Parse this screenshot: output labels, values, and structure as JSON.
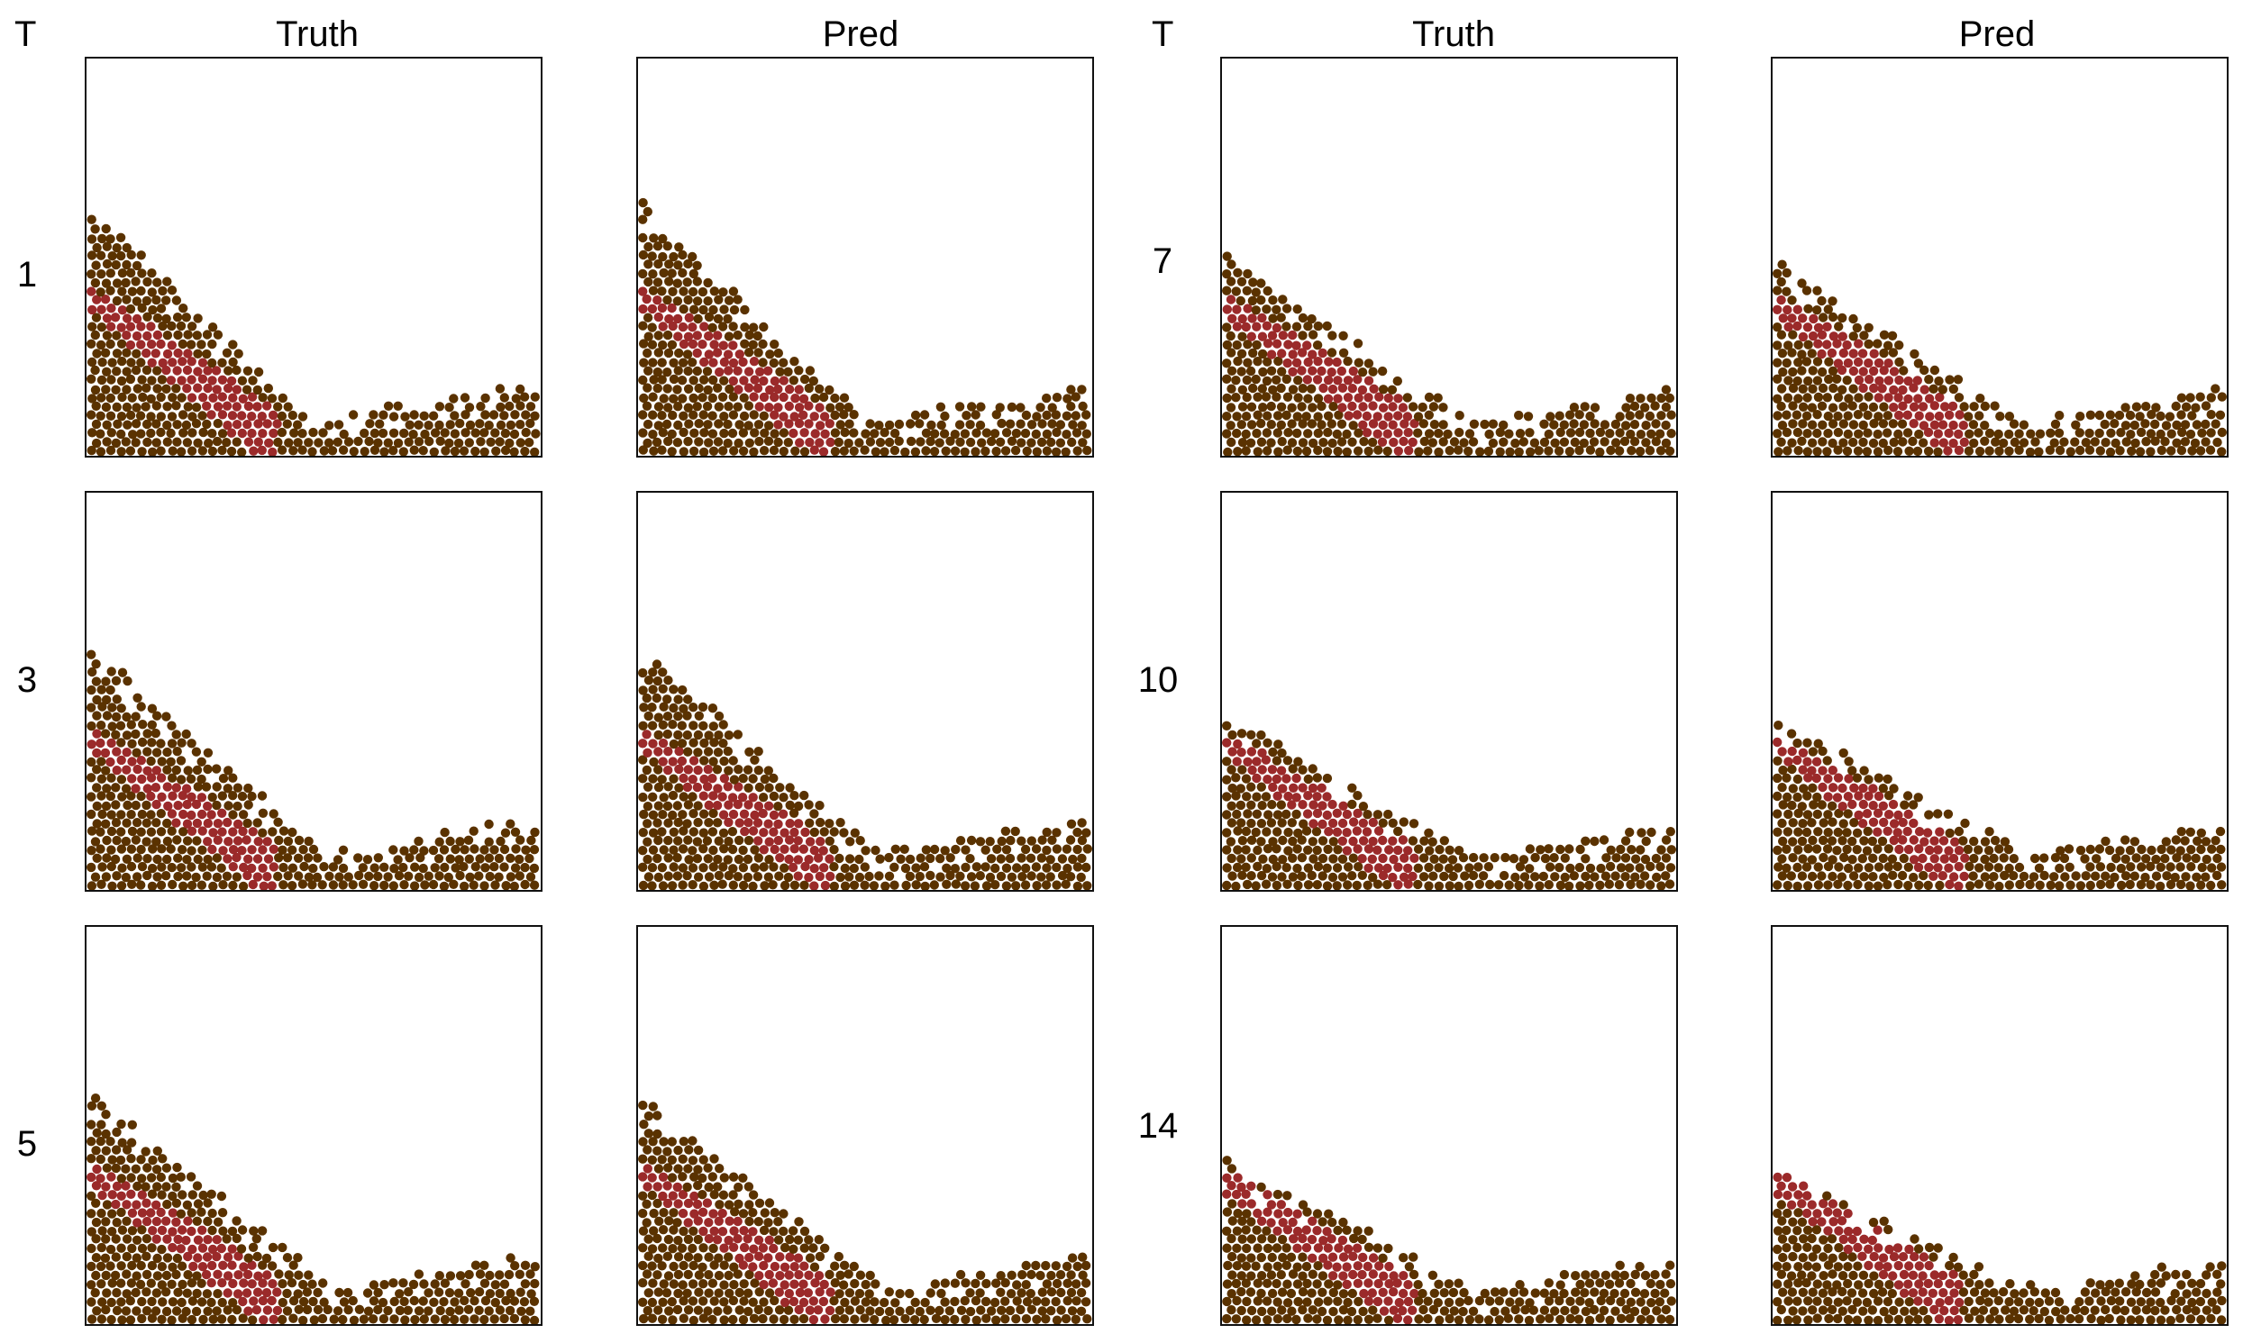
{
  "figure": {
    "time_header": "T",
    "column_headers": [
      "Truth",
      "Pred"
    ],
    "time_steps": [
      "1",
      "3",
      "5",
      "7",
      "10",
      "14"
    ],
    "colors": {
      "background": "#ffffff",
      "soil_particle": "#5a3200",
      "highlight_particle": "#9b2a2a",
      "frame": "#111111"
    }
  },
  "blocks": [
    {
      "rows": [
        {
          "t": "1",
          "truth": {
            "crest": 0.65,
            "slope_end": 0.5,
            "rise": 0.18,
            "band_top": 0.42,
            "band_end": 0.42
          },
          "pred": {
            "crest": 0.65,
            "slope_end": 0.51,
            "rise": 0.18,
            "band_top": 0.42,
            "band_end": 0.43
          }
        },
        {
          "t": "3",
          "truth": {
            "crest": 0.63,
            "slope_end": 0.53,
            "rise": 0.18,
            "band_top": 0.4,
            "band_end": 0.42
          },
          "pred": {
            "crest": 0.63,
            "slope_end": 0.53,
            "rise": 0.18,
            "band_top": 0.4,
            "band_end": 0.43
          }
        },
        {
          "t": "5",
          "truth": {
            "crest": 0.6,
            "slope_end": 0.55,
            "rise": 0.18,
            "band_top": 0.4,
            "band_end": 0.43
          },
          "pred": {
            "crest": 0.58,
            "slope_end": 0.55,
            "rise": 0.18,
            "band_top": 0.4,
            "band_end": 0.43
          }
        }
      ]
    },
    {
      "rows": [
        {
          "t": "7",
          "truth": {
            "crest": 0.52,
            "slope_end": 0.55,
            "rise": 0.17,
            "band_top": 0.4,
            "band_end": 0.43
          },
          "pred": {
            "crest": 0.5,
            "slope_end": 0.56,
            "rise": 0.17,
            "band_top": 0.4,
            "band_end": 0.43
          }
        },
        {
          "t": "10",
          "truth": {
            "crest": 0.45,
            "slope_end": 0.56,
            "rise": 0.16,
            "band_top": 0.39,
            "band_end": 0.43
          },
          "pred": {
            "crest": 0.45,
            "slope_end": 0.57,
            "rise": 0.17,
            "band_top": 0.39,
            "band_end": 0.43
          }
        },
        {
          "t": "14",
          "truth": {
            "crest": 0.42,
            "slope_end": 0.57,
            "rise": 0.17,
            "band_top": 0.38,
            "band_end": 0.43
          },
          "pred": {
            "crest": 0.4,
            "slope_end": 0.57,
            "rise": 0.17,
            "band_top": 0.38,
            "band_end": 0.42
          }
        }
      ]
    }
  ]
}
